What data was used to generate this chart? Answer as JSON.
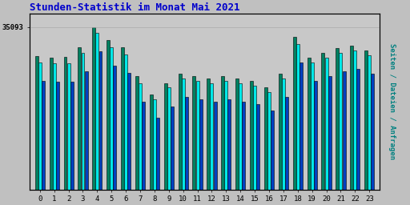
{
  "title": "Stunden-Statistik im Monat Mai 2021",
  "ylabel": "Seiten / Dateien / Anfragen",
  "hours": [
    0,
    1,
    2,
    3,
    4,
    5,
    6,
    7,
    8,
    9,
    10,
    11,
    12,
    13,
    14,
    15,
    16,
    17,
    18,
    19,
    20,
    21,
    22,
    23
  ],
  "seiten": [
    28800,
    28500,
    28600,
    30800,
    35093,
    32200,
    30700,
    24500,
    20500,
    23000,
    25000,
    24500,
    24000,
    24500,
    24000,
    23500,
    22000,
    25000,
    33000,
    28500,
    29500,
    30500,
    31000,
    30000
  ],
  "dateien": [
    27500,
    27200,
    27300,
    29500,
    33800,
    30800,
    29200,
    23000,
    19500,
    22000,
    24000,
    23500,
    23000,
    23500,
    23000,
    22500,
    21000,
    24000,
    31500,
    27500,
    28500,
    29500,
    30000,
    29000
  ],
  "anfragen": [
    23500,
    23200,
    23300,
    25500,
    29800,
    26800,
    25200,
    19000,
    15500,
    18000,
    20000,
    19500,
    19000,
    19500,
    19000,
    18500,
    17000,
    20000,
    27500,
    23500,
    24500,
    25500,
    26000,
    25000
  ],
  "color_teal": "#008060",
  "color_cyan": "#00e8e8",
  "color_blue": "#0040c0",
  "bg_color": "#c0c0c0",
  "plot_bg": "#c8c8c8",
  "title_color": "#0000cc",
  "ylabel_color": "#008080",
  "tick_color": "#000000",
  "border_color": "#000000",
  "grid_color": "#aaaaaa",
  "ymax": 38000,
  "ymin": 0,
  "ytick_value": 35093,
  "ytick_label": "35093"
}
